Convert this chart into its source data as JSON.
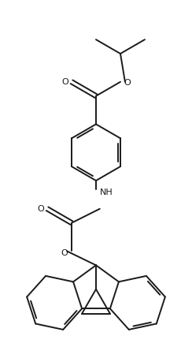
{
  "background_color": "#ffffff",
  "line_color": "#1a1a1a",
  "line_width": 1.4,
  "figsize": [
    2.44,
    4.6
  ],
  "dpi": 100,
  "xlim": [
    0,
    10
  ],
  "ylim": [
    0,
    19
  ]
}
